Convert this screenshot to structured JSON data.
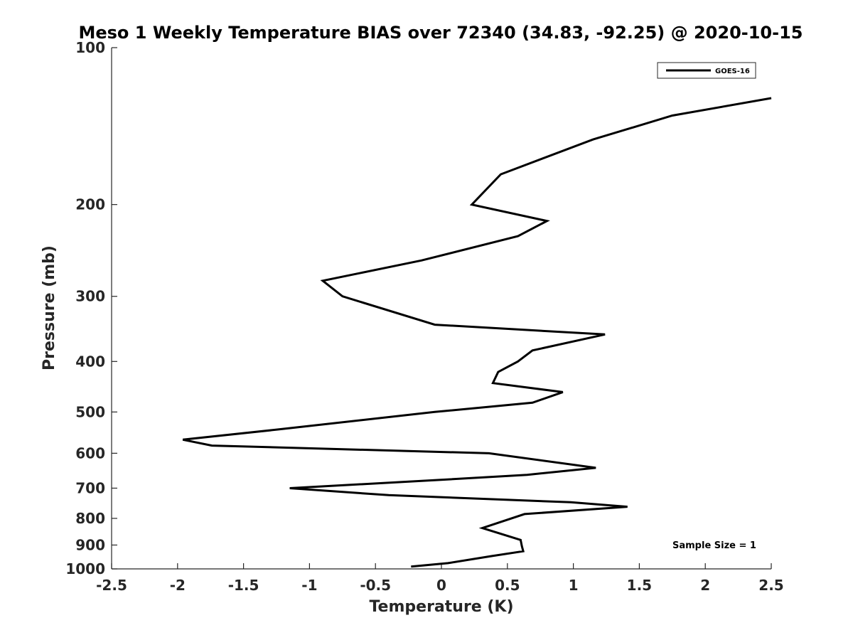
{
  "chart_data": {
    "type": "line",
    "title": "Meso 1 Weekly Temperature BIAS over 72340 (34.83, -92.25) @ 2020-10-15",
    "xlabel": "Temperature (K)",
    "ylabel": "Pressure (mb)",
    "xlim": [
      -2.5,
      2.5
    ],
    "ylim": [
      100,
      1000
    ],
    "y_scale": "log",
    "y_reversed": true,
    "x_ticks": [
      -2.5,
      -2,
      -1.5,
      -1,
      -0.5,
      0,
      0.5,
      1,
      1.5,
      2,
      2.5
    ],
    "x_tick_labels": [
      "-2.5",
      "-2",
      "-1.5",
      "-1",
      "-0.5",
      "0",
      "0.5",
      "1",
      "1.5",
      "2",
      "2.5"
    ],
    "y_ticks": [
      100,
      200,
      300,
      400,
      500,
      600,
      700,
      800,
      900,
      1000
    ],
    "y_tick_labels": [
      "100",
      "200",
      "300",
      "400",
      "500",
      "600",
      "700",
      "800",
      "900",
      "1000"
    ],
    "grid": false,
    "legend_position": "top-right",
    "annotation": "Sample Size = 1",
    "series": [
      {
        "name": "GOES-16",
        "color": "#000000",
        "points": [
          {
            "t": 2.5,
            "p": 125
          },
          {
            "t": 1.75,
            "p": 135
          },
          {
            "t": 1.15,
            "p": 150
          },
          {
            "t": 0.45,
            "p": 175
          },
          {
            "t": 0.23,
            "p": 200
          },
          {
            "t": 0.8,
            "p": 215
          },
          {
            "t": 0.58,
            "p": 230
          },
          {
            "t": -0.15,
            "p": 256
          },
          {
            "t": -0.9,
            "p": 280
          },
          {
            "t": -0.75,
            "p": 300
          },
          {
            "t": -0.05,
            "p": 340
          },
          {
            "t": 1.24,
            "p": 355
          },
          {
            "t": 0.69,
            "p": 381
          },
          {
            "t": 0.58,
            "p": 400
          },
          {
            "t": 0.43,
            "p": 419
          },
          {
            "t": 0.39,
            "p": 440
          },
          {
            "t": 0.92,
            "p": 458
          },
          {
            "t": 0.69,
            "p": 480
          },
          {
            "t": -0.05,
            "p": 500
          },
          {
            "t": -1.23,
            "p": 540
          },
          {
            "t": -1.96,
            "p": 565
          },
          {
            "t": -1.74,
            "p": 580
          },
          {
            "t": 0.36,
            "p": 600
          },
          {
            "t": 1.17,
            "p": 640
          },
          {
            "t": 0.65,
            "p": 660
          },
          {
            "t": -0.15,
            "p": 678
          },
          {
            "t": -1.15,
            "p": 700
          },
          {
            "t": -0.4,
            "p": 722
          },
          {
            "t": 0.98,
            "p": 745
          },
          {
            "t": 1.41,
            "p": 760
          },
          {
            "t": 0.63,
            "p": 785
          },
          {
            "t": 0.31,
            "p": 835
          },
          {
            "t": 0.6,
            "p": 880
          },
          {
            "t": 0.61,
            "p": 905
          },
          {
            "t": 0.62,
            "p": 925
          },
          {
            "t": 0.38,
            "p": 945
          },
          {
            "t": 0.05,
            "p": 975
          },
          {
            "t": -0.23,
            "p": 990
          }
        ]
      }
    ]
  }
}
